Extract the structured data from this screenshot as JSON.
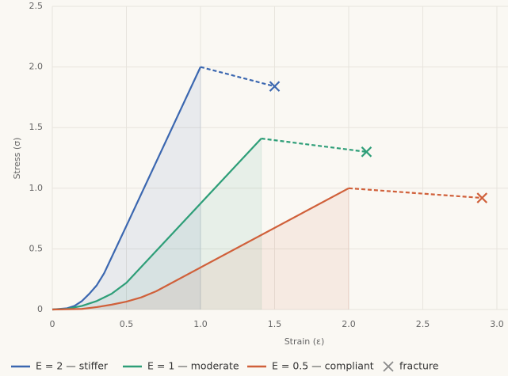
{
  "chart_data": {
    "type": "line",
    "x_label": "Strain (ε)",
    "y_label": "Stress (σ)",
    "xlim": [
      0,
      3.075
    ],
    "ylim": [
      0,
      2.5
    ],
    "xticks": [
      0,
      0.5,
      {
        "value": 1,
        "label": "1.0"
      },
      1.5,
      {
        "value": 2,
        "label": "2.0"
      },
      2.5,
      {
        "value": 3,
        "label": "3.0"
      }
    ],
    "yticks": [
      0,
      0.5,
      {
        "value": 1,
        "label": "1.0"
      },
      1.5,
      {
        "value": 2,
        "label": "2.0"
      },
      2.5
    ],
    "grid": true,
    "fracture_label": "fracture",
    "fracture_color": "#8a8a8a",
    "series": [
      {
        "name": "E = 2 — stiffer",
        "color": "#3b67b0",
        "x": [
          0,
          0.1,
          0.15,
          0.2,
          0.25,
          0.3,
          0.35,
          0.4,
          0.5,
          1.0
        ],
        "values": [
          0,
          0.01,
          0.03,
          0.07,
          0.13,
          0.2,
          0.3,
          0.43,
          0.69,
          2.0
        ],
        "fracture": {
          "x": 1.5,
          "y": 1.84
        }
      },
      {
        "name": "E = 1 — moderate",
        "color": "#2e9e78",
        "x": [
          0,
          0.1,
          0.2,
          0.3,
          0.4,
          0.5,
          1.41
        ],
        "values": [
          0,
          0.005,
          0.03,
          0.07,
          0.13,
          0.22,
          1.41
        ],
        "fracture": {
          "x": 2.12,
          "y": 1.3
        }
      },
      {
        "name": "E = 0.5 — compliant",
        "color": "#d0603a",
        "x": [
          0,
          0.2,
          0.3,
          0.4,
          0.5,
          0.6,
          0.7,
          2.0
        ],
        "values": [
          0,
          0.005,
          0.02,
          0.04,
          0.065,
          0.1,
          0.15,
          1.0
        ],
        "fracture": {
          "x": 2.9,
          "y": 0.92
        }
      }
    ]
  }
}
